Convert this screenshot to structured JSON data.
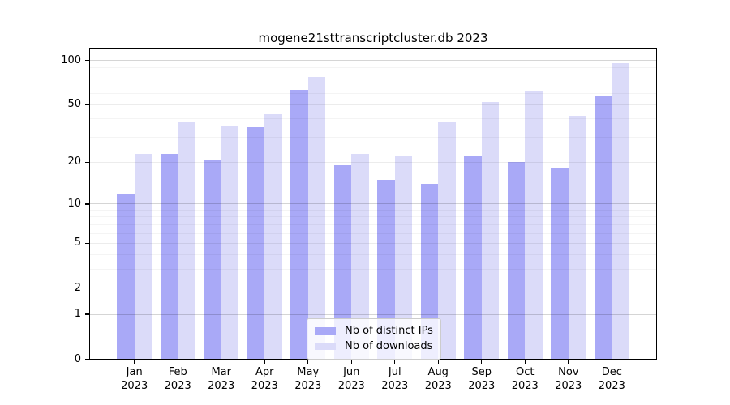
{
  "title": "mogene21sttranscriptcluster.db 2023",
  "chart_data": {
    "type": "bar",
    "title": "mogene21sttranscriptcluster.db 2023",
    "categories": [
      "Jan",
      "Feb",
      "Mar",
      "Apr",
      "May",
      "Jun",
      "Jul",
      "Aug",
      "Sep",
      "Oct",
      "Nov",
      "Dec"
    ],
    "category_year_label": "2023",
    "series": [
      {
        "name": "Nb of distinct IPs",
        "color": "#a9a9f7",
        "values": [
          12,
          23,
          21,
          35,
          63,
          19,
          15,
          14,
          22,
          20,
          18,
          57
        ]
      },
      {
        "name": "Nb of downloads",
        "color": "#dbdbf9",
        "values": [
          23,
          38,
          36,
          43,
          77,
          23,
          22,
          38,
          52,
          62,
          42,
          96
        ]
      }
    ],
    "xlabel": "",
    "ylabel": "",
    "yscale": "log10(1+x)",
    "ylim": [
      0,
      122
    ],
    "yticks": [
      0,
      1,
      2,
      5,
      10,
      20,
      50,
      100
    ],
    "decade_gridlines": [
      1,
      10,
      100
    ],
    "minor_gridlines": [
      3,
      4,
      6,
      7,
      8,
      9,
      30,
      40,
      60,
      70,
      80,
      90
    ],
    "grid": "on",
    "grid_above_bars": true,
    "legend_position": "lower center",
    "background_color": "#ffffff",
    "axis_color": "#000000"
  }
}
